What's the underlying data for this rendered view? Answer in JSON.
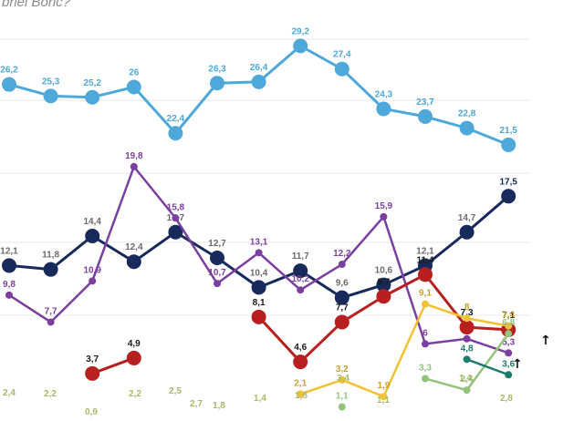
{
  "title": "briel Boric?",
  "colors": {
    "grid": "#e9e9e9",
    "arrow": "#111111"
  },
  "chart_data": {
    "type": "line",
    "title": "briel Boric?",
    "xlabel": "",
    "ylabel": "",
    "ylim": [
      0,
      31
    ],
    "grid": true,
    "x": [
      0,
      1,
      2,
      3,
      4,
      5,
      6,
      7,
      8,
      9,
      10,
      11,
      12
    ],
    "series": [
      {
        "color": "#4ea8d9",
        "marker": "large",
        "labels": true,
        "values": [
          26.2,
          25.3,
          25.2,
          26,
          22.4,
          26.3,
          26.4,
          29.2,
          27.4,
          24.3,
          23.7,
          22.8,
          21.5
        ]
      },
      {
        "color": "#172a5b",
        "marker": "large",
        "labels": true,
        "label_color": "#6b6b6b",
        "last_label_color": "#172a5b",
        "values": [
          12.1,
          11.8,
          14.4,
          12.4,
          14.7,
          12.7,
          10.4,
          11.7,
          9.6,
          10.6,
          12.1,
          14.7,
          17.5
        ]
      },
      {
        "color": "#7b3fa0",
        "marker": "small",
        "labels": true,
        "values": [
          9.8,
          7.7,
          10.9,
          19.8,
          15.8,
          10.7,
          13.1,
          10.2,
          12.2,
          15.9,
          6,
          6.4,
          5.3
        ]
      },
      {
        "color": "#b81f1f",
        "marker": "large",
        "labels": true,
        "label_color": "#1a1a1a",
        "values": [
          null,
          null,
          3.7,
          4.9,
          null,
          null,
          8.1,
          4.6,
          7.7,
          9.7,
          11.4,
          7.3,
          7.1
        ]
      },
      {
        "color": "#f1c232",
        "marker": "small",
        "labels": true,
        "label_color": "#c9a227",
        "values": [
          null,
          null,
          null,
          null,
          null,
          null,
          null,
          2.1,
          3.2,
          1.9,
          9.1,
          8,
          7.4
        ]
      },
      {
        "color": "#93c47d",
        "marker": "small",
        "labels": true,
        "values": [
          null,
          null,
          null,
          null,
          null,
          null,
          null,
          null,
          1.1,
          null,
          3.3,
          2.4,
          6.8
        ]
      },
      {
        "color": "#1f7a6e",
        "marker": "small",
        "labels": true,
        "values": [
          null,
          null,
          null,
          null,
          null,
          null,
          null,
          null,
          null,
          null,
          null,
          4.8,
          3.6
        ]
      }
    ],
    "extra_labels": [
      "2,4",
      "2,2",
      "0,9",
      "2,2",
      "2,5",
      "2,7",
      "1,8",
      "1,4",
      "1,8",
      "3,4",
      "1,1",
      "1,4",
      "2,8"
    ]
  }
}
